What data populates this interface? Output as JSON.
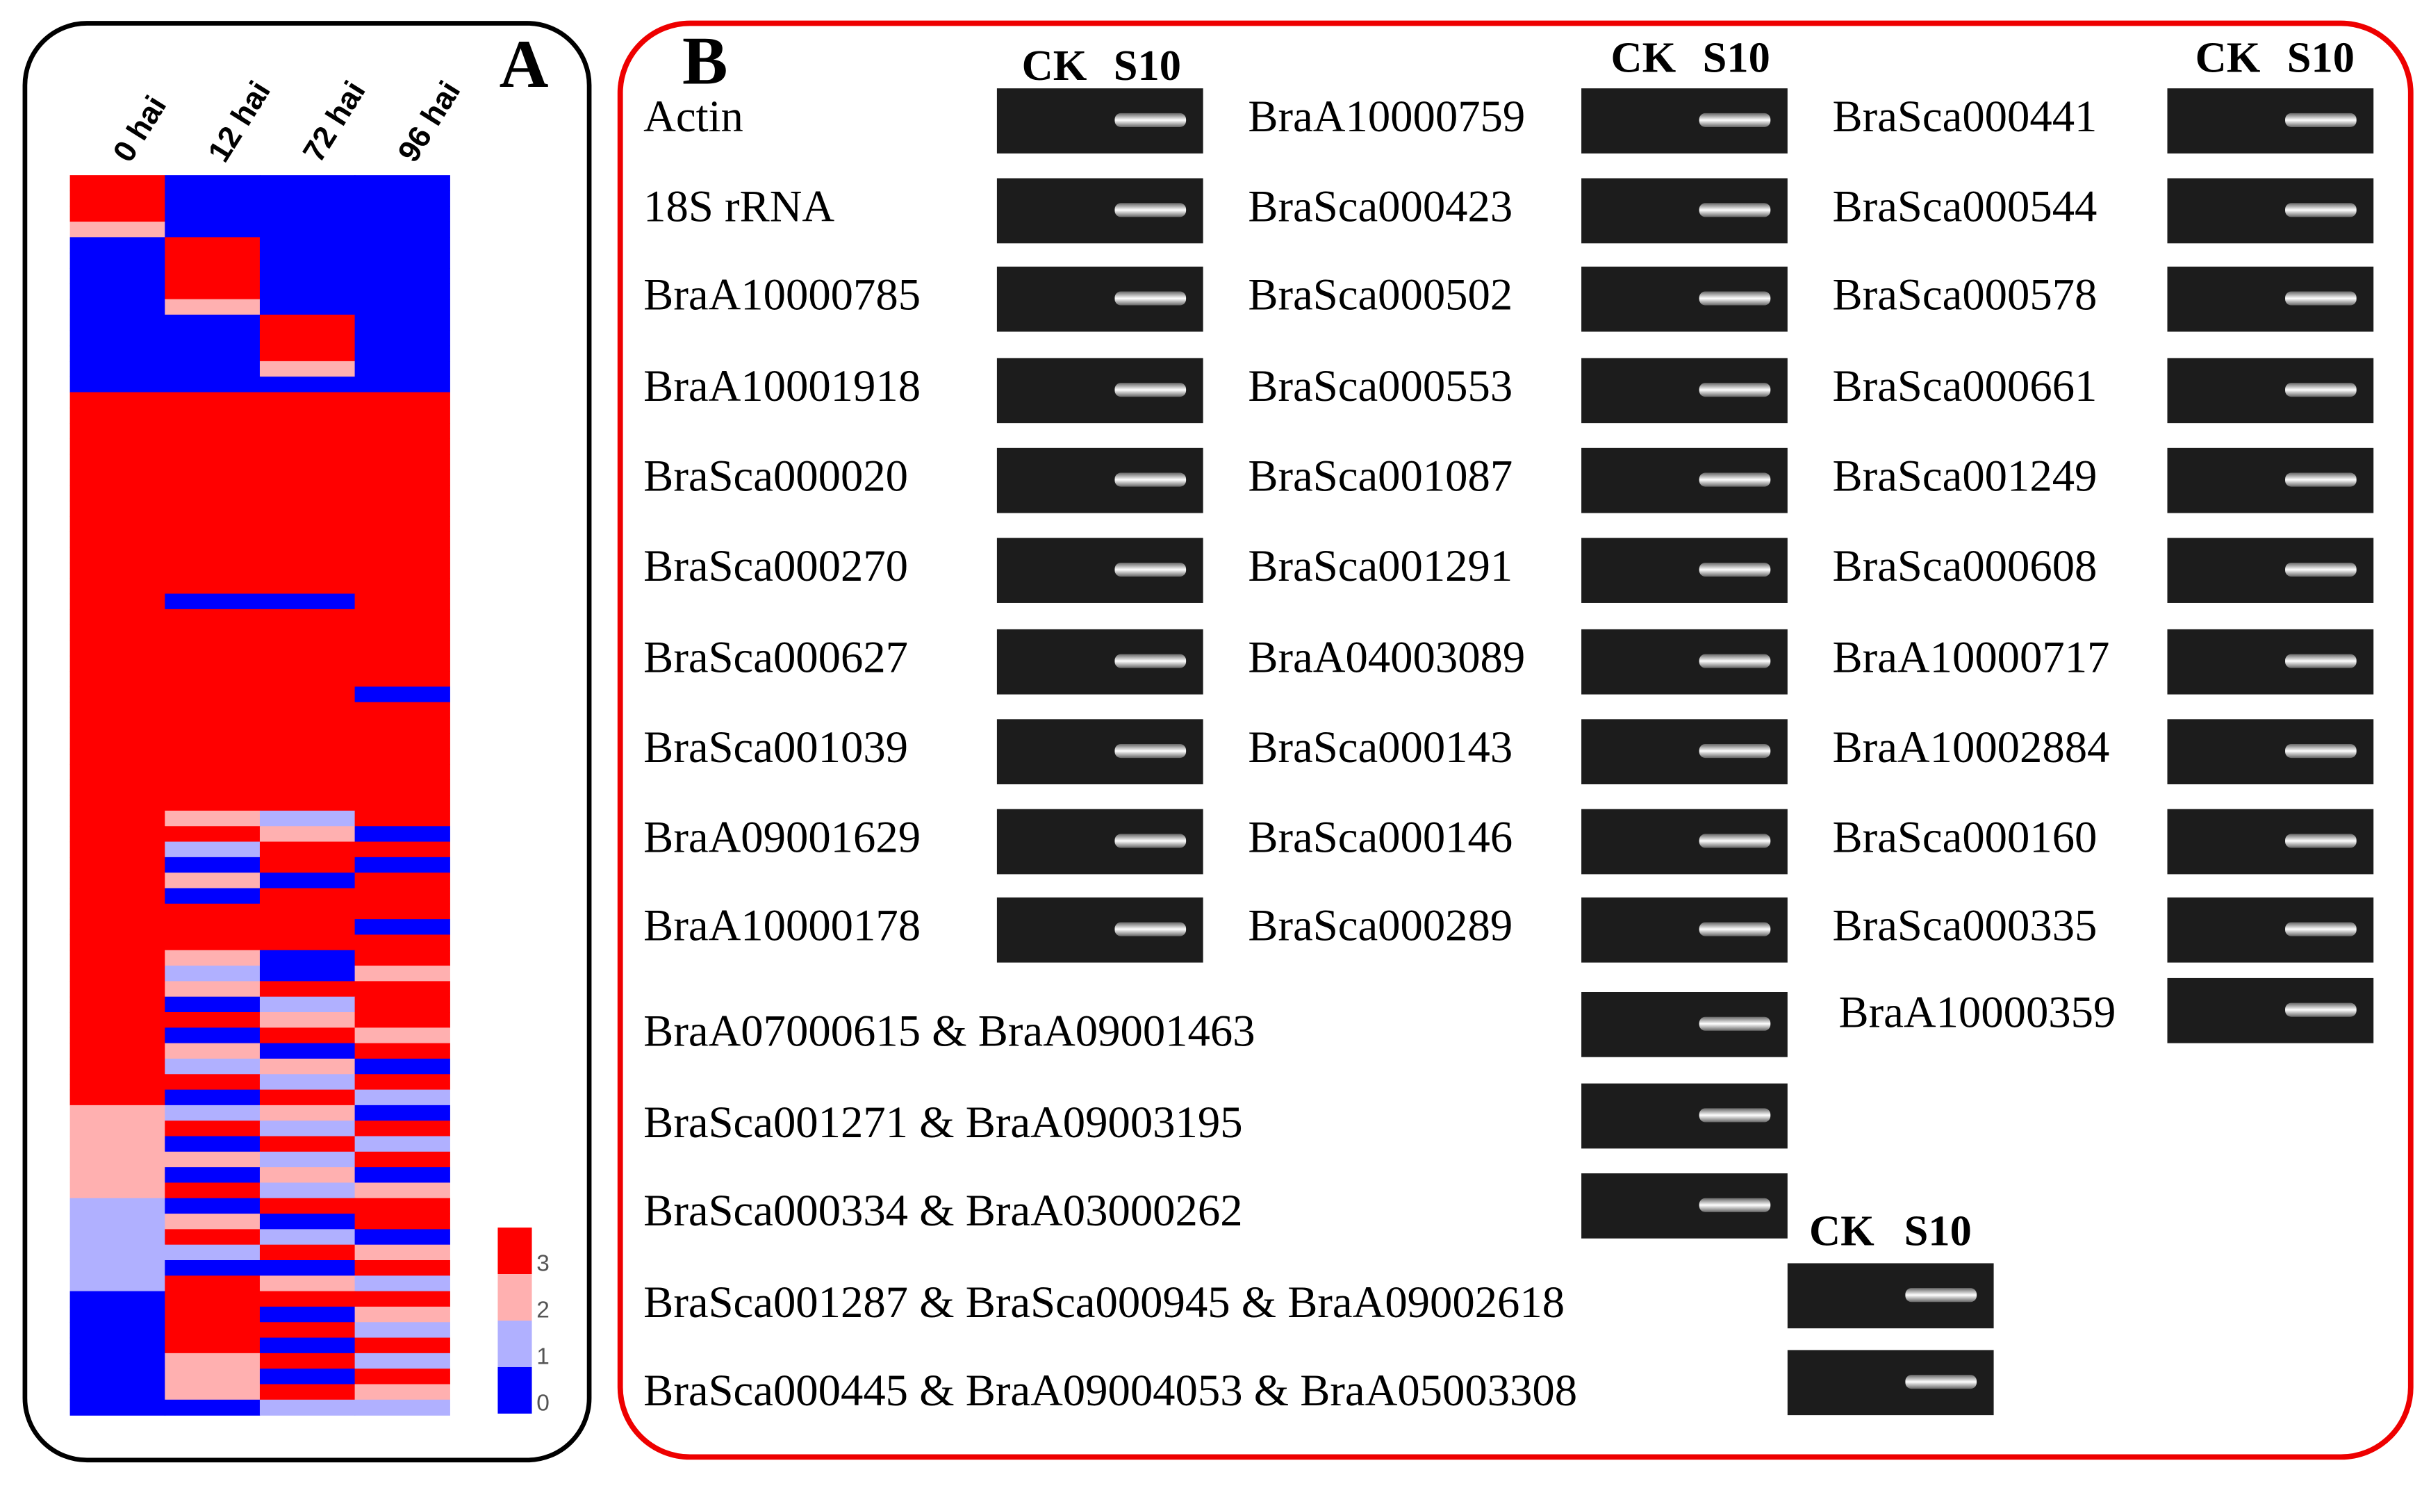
{
  "panel_a": {
    "label": "A",
    "columns": [
      "0 hai",
      "12 hai",
      "72 hai",
      "96 hai"
    ],
    "heatmap": [
      [
        3,
        0,
        0,
        0
      ],
      [
        3,
        0,
        0,
        0
      ],
      [
        3,
        0,
        0,
        0
      ],
      [
        2,
        0,
        0,
        0
      ],
      [
        0,
        3,
        0,
        0
      ],
      [
        0,
        3,
        0,
        0
      ],
      [
        0,
        3,
        0,
        0
      ],
      [
        0,
        3,
        0,
        0
      ],
      [
        0,
        2,
        0,
        0
      ],
      [
        0,
        0,
        3,
        0
      ],
      [
        0,
        0,
        3,
        0
      ],
      [
        0,
        0,
        3,
        0
      ],
      [
        0,
        0,
        2,
        0
      ],
      [
        0,
        0,
        0,
        0
      ],
      [
        3,
        3,
        3,
        3
      ],
      [
        3,
        3,
        3,
        3
      ],
      [
        3,
        3,
        3,
        3
      ],
      [
        3,
        3,
        3,
        3
      ],
      [
        3,
        3,
        3,
        3
      ],
      [
        3,
        3,
        3,
        3
      ],
      [
        3,
        3,
        3,
        3
      ],
      [
        3,
        3,
        3,
        3
      ],
      [
        3,
        3,
        3,
        3
      ],
      [
        3,
        3,
        3,
        3
      ],
      [
        3,
        3,
        3,
        3
      ],
      [
        3,
        3,
        3,
        3
      ],
      [
        3,
        3,
        3,
        3
      ],
      [
        3,
        0,
        0,
        3
      ],
      [
        3,
        3,
        3,
        3
      ],
      [
        3,
        3,
        3,
        3
      ],
      [
        3,
        3,
        3,
        3
      ],
      [
        3,
        3,
        3,
        3
      ],
      [
        3,
        3,
        3,
        3
      ],
      [
        3,
        3,
        3,
        0
      ],
      [
        3,
        3,
        3,
        3
      ],
      [
        3,
        3,
        3,
        3
      ],
      [
        3,
        3,
        3,
        3
      ],
      [
        3,
        3,
        3,
        3
      ],
      [
        3,
        3,
        3,
        3
      ],
      [
        3,
        3,
        3,
        3
      ],
      [
        3,
        3,
        3,
        3
      ],
      [
        3,
        2,
        1,
        3
      ],
      [
        3,
        3,
        2,
        0
      ],
      [
        3,
        1,
        3,
        3
      ],
      [
        3,
        0,
        3,
        0
      ],
      [
        3,
        2,
        0,
        3
      ],
      [
        3,
        0,
        3,
        3
      ],
      [
        3,
        3,
        3,
        3
      ],
      [
        3,
        3,
        3,
        0
      ],
      [
        3,
        3,
        3,
        3
      ],
      [
        3,
        2,
        0,
        3
      ],
      [
        3,
        1,
        0,
        2
      ],
      [
        3,
        2,
        3,
        3
      ],
      [
        3,
        0,
        1,
        3
      ],
      [
        3,
        3,
        2,
        3
      ],
      [
        3,
        0,
        3,
        2
      ],
      [
        3,
        2,
        0,
        3
      ],
      [
        3,
        1,
        2,
        0
      ],
      [
        3,
        3,
        1,
        3
      ],
      [
        3,
        0,
        3,
        1
      ],
      [
        2,
        1,
        2,
        0
      ],
      [
        2,
        3,
        1,
        3
      ],
      [
        2,
        0,
        3,
        1
      ],
      [
        2,
        2,
        1,
        3
      ],
      [
        2,
        0,
        2,
        0
      ],
      [
        2,
        3,
        1,
        2
      ],
      [
        1,
        0,
        3,
        3
      ],
      [
        1,
        2,
        0,
        3
      ],
      [
        1,
        3,
        1,
        0
      ],
      [
        1,
        1,
        3,
        2
      ],
      [
        1,
        0,
        0,
        3
      ],
      [
        1,
        3,
        2,
        1
      ],
      [
        0,
        3,
        3,
        3
      ],
      [
        0,
        3,
        0,
        2
      ],
      [
        0,
        3,
        3,
        1
      ],
      [
        0,
        3,
        0,
        3
      ],
      [
        0,
        2,
        3,
        1
      ],
      [
        0,
        2,
        0,
        3
      ],
      [
        0,
        2,
        3,
        2
      ],
      [
        0,
        0,
        1,
        1
      ]
    ],
    "legend": [
      {
        "value": 3,
        "color": "#ff0000"
      },
      {
        "value": 2,
        "color": "#ffb0b0"
      },
      {
        "value": 1,
        "color": "#b0b0ff"
      },
      {
        "value": 0,
        "color": "#0000ff"
      }
    ]
  },
  "panel_b": {
    "label": "B",
    "groups": [
      {
        "header": [
          "CK",
          "S10"
        ],
        "genes": [
          "Actin",
          "18S rRNA",
          "BraA10000785",
          "BraA10001918",
          "BraSca000020",
          "BraSca000270",
          "BraSca000627",
          "BraSca001039",
          "BraA09001629",
          "BraA10000178"
        ]
      },
      {
        "header": [
          "CK",
          "S10"
        ],
        "genes": [
          "BraA10000759",
          "BraSca000423",
          "BraSca000502",
          "BraSca000553",
          "BraSca001087",
          "BraSca001291",
          "BraA04003089",
          "BraSca000143",
          "BraSca000146",
          "BraSca000289",
          "BraA07000615 & BraA09001463",
          "BraSca001271 & BraA09003195",
          "BraSca000334 & BraA03000262"
        ]
      },
      {
        "header": [
          "CK",
          "S10"
        ],
        "genes": [
          "BraSca000441",
          "BraSca000544",
          "BraSca000578",
          "BraSca000661",
          "BraSca001249",
          "BraSca000608",
          "BraA10000717",
          "BraA10002884",
          "BraSca000160",
          "BraSca000335",
          "BraA10000359"
        ]
      },
      {
        "header": [
          "CK",
          "S10"
        ],
        "genes": [
          "BraSca001287 & BraSca000945 & BraA09002618",
          "BraSca000445 & BraA09004053 & BraA05003308"
        ]
      }
    ]
  }
}
